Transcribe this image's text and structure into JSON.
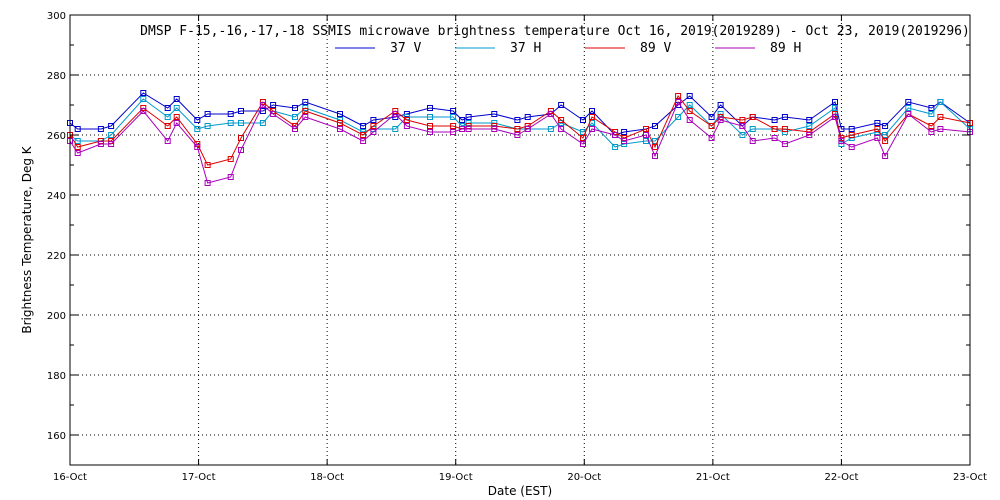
{
  "chart_data": {
    "type": "line",
    "title": "DMSP F-15,-16,-17,-18 SSMIS microwave brightness temperature Oct 16, 2019(2019289) - Oct 23, 2019(2019296)",
    "xlabel": "Date (EST)",
    "ylabel": "Brightness Temperature, Deg K",
    "xlim": [
      0,
      7
    ],
    "ylim": [
      150,
      300
    ],
    "x_ticks": [
      "16-Oct",
      "17-Oct",
      "18-Oct",
      "19-Oct",
      "20-Oct",
      "21-Oct",
      "22-Oct",
      "23-Oct"
    ],
    "y_ticks": [
      160,
      180,
      200,
      220,
      240,
      260,
      280,
      300
    ],
    "grid": true,
    "legend_position": "top",
    "series": [
      {
        "name": "37 V",
        "color": "#0000cc",
        "points": [
          [
            0.0,
            264
          ],
          [
            0.06,
            262
          ],
          [
            0.24,
            262
          ],
          [
            0.32,
            263
          ],
          [
            0.57,
            274
          ],
          [
            0.76,
            269
          ],
          [
            0.83,
            272
          ],
          [
            0.99,
            265
          ],
          [
            1.07,
            267
          ],
          [
            1.25,
            267
          ],
          [
            1.33,
            268
          ],
          [
            1.5,
            268
          ],
          [
            1.58,
            270
          ],
          [
            1.75,
            269
          ],
          [
            1.83,
            271
          ],
          [
            2.1,
            267
          ],
          [
            2.28,
            263
          ],
          [
            2.36,
            265
          ],
          [
            2.53,
            266
          ],
          [
            2.62,
            267
          ],
          [
            2.8,
            269
          ],
          [
            2.98,
            268
          ],
          [
            3.05,
            265
          ],
          [
            3.1,
            266
          ],
          [
            3.3,
            267
          ],
          [
            3.48,
            265
          ],
          [
            3.56,
            266
          ],
          [
            3.74,
            267
          ],
          [
            3.82,
            270
          ],
          [
            3.99,
            265
          ],
          [
            4.06,
            268
          ],
          [
            4.24,
            260
          ],
          [
            4.31,
            261
          ],
          [
            4.48,
            262
          ],
          [
            4.55,
            263
          ],
          [
            4.73,
            270
          ],
          [
            4.82,
            273
          ],
          [
            4.99,
            266
          ],
          [
            5.06,
            270
          ],
          [
            5.23,
            263
          ],
          [
            5.31,
            266
          ],
          [
            5.48,
            265
          ],
          [
            5.56,
            266
          ],
          [
            5.75,
            265
          ],
          [
            5.95,
            271
          ],
          [
            6.0,
            262
          ],
          [
            6.08,
            262
          ],
          [
            6.28,
            264
          ],
          [
            6.34,
            263
          ],
          [
            6.52,
            271
          ],
          [
            6.7,
            269
          ],
          [
            6.77,
            271
          ],
          [
            7.0,
            264
          ]
        ]
      },
      {
        "name": "37 H",
        "color": "#0099cc",
        "points": [
          [
            0.0,
            260
          ],
          [
            0.06,
            258
          ],
          [
            0.24,
            258
          ],
          [
            0.32,
            260
          ],
          [
            0.57,
            272
          ],
          [
            0.76,
            266
          ],
          [
            0.83,
            269
          ],
          [
            0.99,
            262
          ],
          [
            1.07,
            263
          ],
          [
            1.25,
            264
          ],
          [
            1.33,
            264
          ],
          [
            1.5,
            264
          ],
          [
            1.58,
            268
          ],
          [
            1.75,
            266
          ],
          [
            1.83,
            269
          ],
          [
            2.1,
            265
          ],
          [
            2.28,
            261
          ],
          [
            2.36,
            262
          ],
          [
            2.53,
            262
          ],
          [
            2.62,
            266
          ],
          [
            2.8,
            266
          ],
          [
            2.98,
            266
          ],
          [
            3.05,
            263
          ],
          [
            3.1,
            264
          ],
          [
            3.3,
            264
          ],
          [
            3.48,
            262
          ],
          [
            3.56,
            262
          ],
          [
            3.74,
            262
          ],
          [
            3.82,
            264
          ],
          [
            3.99,
            261
          ],
          [
            4.06,
            264
          ],
          [
            4.24,
            256
          ],
          [
            4.31,
            257
          ],
          [
            4.48,
            258
          ],
          [
            4.55,
            258
          ],
          [
            4.73,
            266
          ],
          [
            4.82,
            270
          ],
          [
            4.99,
            263
          ],
          [
            5.06,
            267
          ],
          [
            5.23,
            260
          ],
          [
            5.31,
            262
          ],
          [
            5.48,
            262
          ],
          [
            5.56,
            261
          ],
          [
            5.75,
            263
          ],
          [
            5.95,
            269
          ],
          [
            6.0,
            257
          ],
          [
            6.08,
            259
          ],
          [
            6.28,
            261
          ],
          [
            6.34,
            260
          ],
          [
            6.52,
            269
          ],
          [
            6.7,
            267
          ],
          [
            6.77,
            271
          ],
          [
            7.0,
            262
          ]
        ]
      },
      {
        "name": "89 V",
        "color": "#dd0000",
        "points": [
          [
            0.0,
            260
          ],
          [
            0.06,
            256
          ],
          [
            0.24,
            258
          ],
          [
            0.32,
            258
          ],
          [
            0.57,
            269
          ],
          [
            0.76,
            263
          ],
          [
            0.83,
            266
          ],
          [
            0.99,
            257
          ],
          [
            1.07,
            250
          ],
          [
            1.25,
            252
          ],
          [
            1.33,
            259
          ],
          [
            1.5,
            271
          ],
          [
            1.58,
            268
          ],
          [
            1.75,
            263
          ],
          [
            1.83,
            268
          ],
          [
            2.1,
            264
          ],
          [
            2.28,
            260
          ],
          [
            2.36,
            263
          ],
          [
            2.53,
            268
          ],
          [
            2.62,
            265
          ],
          [
            2.8,
            263
          ],
          [
            2.98,
            263
          ],
          [
            3.05,
            262
          ],
          [
            3.1,
            263
          ],
          [
            3.3,
            263
          ],
          [
            3.48,
            262
          ],
          [
            3.56,
            263
          ],
          [
            3.74,
            268
          ],
          [
            3.82,
            265
          ],
          [
            3.99,
            259
          ],
          [
            4.06,
            266
          ],
          [
            4.24,
            261
          ],
          [
            4.31,
            259
          ],
          [
            4.48,
            262
          ],
          [
            4.55,
            256
          ],
          [
            4.73,
            273
          ],
          [
            4.82,
            268
          ],
          [
            4.99,
            263
          ],
          [
            5.06,
            266
          ],
          [
            5.23,
            265
          ],
          [
            5.31,
            266
          ],
          [
            5.48,
            262
          ],
          [
            5.56,
            262
          ],
          [
            5.75,
            261
          ],
          [
            5.95,
            267
          ],
          [
            6.0,
            259
          ],
          [
            6.08,
            260
          ],
          [
            6.28,
            262
          ],
          [
            6.34,
            258
          ],
          [
            6.52,
            267
          ],
          [
            6.7,
            263
          ],
          [
            6.77,
            266
          ],
          [
            7.0,
            264
          ]
        ]
      },
      {
        "name": "89 H",
        "color": "#aa00bb",
        "points": [
          [
            0.0,
            258
          ],
          [
            0.06,
            254
          ],
          [
            0.24,
            257
          ],
          [
            0.32,
            257
          ],
          [
            0.57,
            268
          ],
          [
            0.76,
            258
          ],
          [
            0.83,
            264
          ],
          [
            0.99,
            256
          ],
          [
            1.07,
            244
          ],
          [
            1.25,
            246
          ],
          [
            1.33,
            255
          ],
          [
            1.5,
            270
          ],
          [
            1.58,
            267
          ],
          [
            1.75,
            262
          ],
          [
            1.83,
            266
          ],
          [
            2.1,
            262
          ],
          [
            2.28,
            258
          ],
          [
            2.36,
            261
          ],
          [
            2.53,
            267
          ],
          [
            2.62,
            263
          ],
          [
            2.8,
            261
          ],
          [
            2.98,
            261
          ],
          [
            3.05,
            262
          ],
          [
            3.1,
            262
          ],
          [
            3.3,
            262
          ],
          [
            3.48,
            260
          ],
          [
            3.56,
            262
          ],
          [
            3.74,
            267
          ],
          [
            3.82,
            262
          ],
          [
            3.99,
            257
          ],
          [
            4.06,
            262
          ],
          [
            4.24,
            260
          ],
          [
            4.31,
            258
          ],
          [
            4.48,
            260
          ],
          [
            4.55,
            253
          ],
          [
            4.73,
            271
          ],
          [
            4.82,
            265
          ],
          [
            4.99,
            259
          ],
          [
            5.06,
            265
          ],
          [
            5.23,
            263
          ],
          [
            5.31,
            258
          ],
          [
            5.48,
            259
          ],
          [
            5.56,
            257
          ],
          [
            5.75,
            260
          ],
          [
            5.95,
            266
          ],
          [
            6.0,
            258
          ],
          [
            6.08,
            256
          ],
          [
            6.28,
            259
          ],
          [
            6.34,
            253
          ],
          [
            6.52,
            267
          ],
          [
            6.7,
            261
          ],
          [
            6.77,
            262
          ],
          [
            7.0,
            261
          ]
        ]
      }
    ]
  }
}
